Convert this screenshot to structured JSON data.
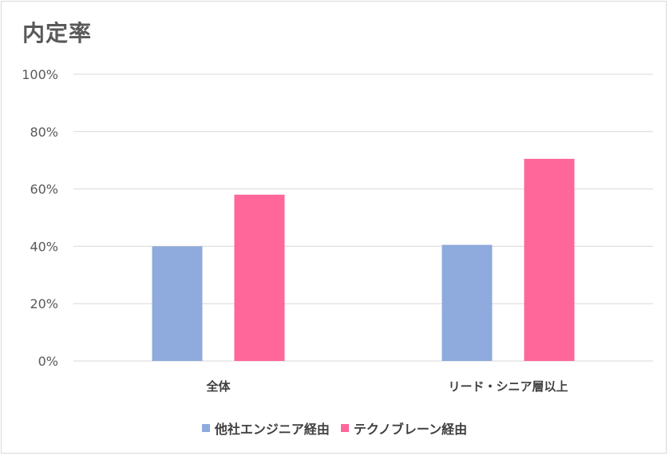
{
  "chart_data": {
    "type": "bar",
    "title": "内定率",
    "categories": [
      "全体",
      "リード・シニア層以上"
    ],
    "series": [
      {
        "name": "他社エンジニア経由",
        "color": "#8faadc",
        "values": [
          40,
          40.5
        ]
      },
      {
        "name": "テクノブレーン経由",
        "color": "#ff6699",
        "values": [
          58,
          70.5
        ]
      }
    ],
    "yticks": [
      "0%",
      "20%",
      "40%",
      "60%",
      "80%",
      "100%"
    ],
    "ylim": [
      0,
      100
    ],
    "xlabel": "",
    "ylabel": "",
    "grid": true,
    "legend": "bottom"
  }
}
